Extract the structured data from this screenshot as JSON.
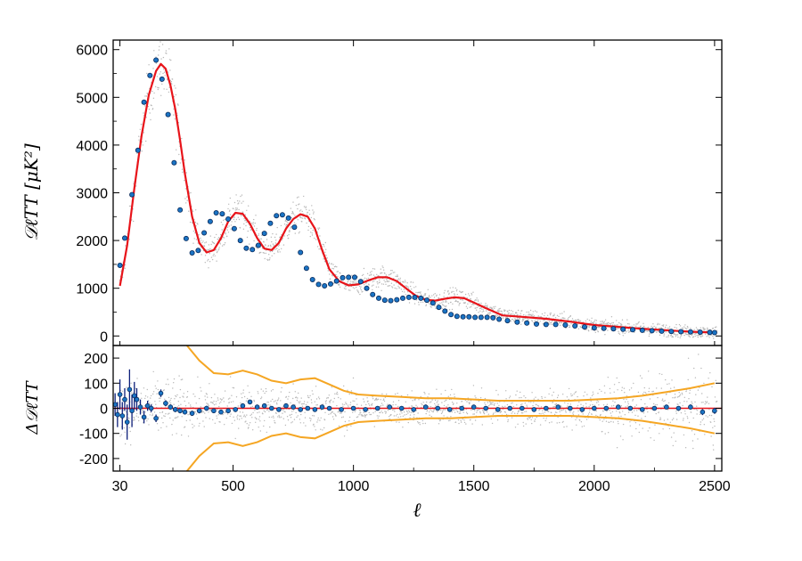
{
  "chart_data": [
    {
      "type": "scatter",
      "panel": "top",
      "title": "",
      "ylabel": "𝒟ℓTT [μK²]",
      "xlabel": "",
      "ylim": [
        -200,
        6200
      ],
      "yticks": [
        0,
        1000,
        2000,
        3000,
        4000,
        5000,
        6000
      ],
      "ytick_labels": [
        "0",
        "1000",
        "2000",
        "3000",
        "4000",
        "5000",
        "6000"
      ],
      "colors": {
        "model": "#e8141a",
        "points": "#1b74c4",
        "scatter": "#b8b8b8"
      },
      "series": [
        {
          "kind": "model-curve",
          "x": [
            30,
            60,
            90,
            120,
            150,
            180,
            200,
            220,
            240,
            260,
            280,
            300,
            330,
            360,
            390,
            420,
            450,
            480,
            510,
            540,
            570,
            600,
            630,
            660,
            690,
            720,
            750,
            780,
            810,
            840,
            870,
            900,
            940,
            980,
            1020,
            1060,
            1100,
            1140,
            1180,
            1220,
            1260,
            1300,
            1340,
            1380,
            1420,
            1460,
            1500,
            1560,
            1620,
            1700,
            1800,
            1900,
            2000,
            2100,
            2200,
            2300,
            2400,
            2500
          ],
          "y": [
            1050,
            1900,
            3100,
            4200,
            5050,
            5550,
            5700,
            5600,
            5250,
            4750,
            4100,
            3400,
            2500,
            1950,
            1750,
            1800,
            2050,
            2400,
            2580,
            2560,
            2350,
            2050,
            1830,
            1800,
            1950,
            2250,
            2450,
            2550,
            2500,
            2250,
            1800,
            1400,
            1150,
            1060,
            1080,
            1160,
            1230,
            1230,
            1150,
            990,
            840,
            760,
            740,
            780,
            810,
            790,
            700,
            560,
            430,
            400,
            360,
            300,
            230,
            190,
            150,
            120,
            90,
            70
          ]
        },
        {
          "kind": "binned-points",
          "x": [
            30,
            50,
            80,
            105,
            130,
            155,
            180,
            205,
            230,
            255,
            280,
            305,
            330,
            355,
            380,
            405,
            430,
            455,
            480,
            505,
            530,
            555,
            580,
            605,
            630,
            655,
            680,
            705,
            730,
            755,
            780,
            805,
            830,
            855,
            880,
            905,
            930,
            955,
            980,
            1005,
            1030,
            1055,
            1080,
            1105,
            1130,
            1155,
            1180,
            1205,
            1230,
            1255,
            1280,
            1305,
            1330,
            1355,
            1380,
            1405,
            1430,
            1455,
            1480,
            1505,
            1530,
            1555,
            1580,
            1605,
            1640,
            1680,
            1720,
            1760,
            1800,
            1840,
            1880,
            1920,
            1960,
            2000,
            2040,
            2080,
            2120,
            2160,
            2200,
            2240,
            2280,
            2320,
            2360,
            2400,
            2440,
            2480,
            2500
          ],
          "y": [
            1480,
            2050,
            2960,
            3890,
            4900,
            5460,
            5780,
            5380,
            4640,
            3630,
            2640,
            2040,
            1740,
            1790,
            2160,
            2400,
            2580,
            2560,
            2450,
            2250,
            2000,
            1840,
            1810,
            1900,
            2150,
            2360,
            2520,
            2540,
            2470,
            2280,
            1750,
            1420,
            1180,
            1080,
            1050,
            1090,
            1150,
            1220,
            1230,
            1230,
            1140,
            1000,
            870,
            790,
            750,
            740,
            760,
            790,
            810,
            810,
            790,
            750,
            690,
            600,
            520,
            450,
            410,
            400,
            400,
            390,
            390,
            390,
            380,
            350,
            320,
            290,
            270,
            250,
            240,
            240,
            230,
            210,
            190,
            170,
            160,
            150,
            140,
            130,
            120,
            110,
            100,
            95,
            90,
            85,
            80,
            75,
            70
          ]
        }
      ]
    },
    {
      "type": "scatter",
      "panel": "bottom",
      "title": "",
      "ylabel": "Δ𝒟ℓTT",
      "xlabel": "ℓ",
      "xlim": [
        2,
        2530
      ],
      "ylim": [
        -250,
        250
      ],
      "xticks": [
        30,
        500,
        1000,
        1500,
        2000,
        2500
      ],
      "xtick_labels": [
        "30",
        "500",
        "1000",
        "1500",
        "2000",
        "2500"
      ],
      "yticks": [
        -200,
        -100,
        0,
        100,
        200
      ],
      "ytick_labels": [
        "-200",
        "-100",
        "0",
        "100",
        "200"
      ],
      "colors": {
        "zero_line": "#e8141a",
        "envelope": "#f5a623",
        "points": "#1b74c4",
        "errorbars": "#0d1f7a",
        "scatter": "#b8b8b8"
      },
      "series": [
        {
          "kind": "binned-residuals",
          "x": [
            10,
            20,
            30,
            40,
            50,
            60,
            70,
            80,
            90,
            100,
            115,
            130,
            145,
            160,
            180,
            200,
            220,
            240,
            260,
            280,
            300,
            330,
            360,
            390,
            420,
            450,
            480,
            510,
            540,
            570,
            600,
            630,
            660,
            690,
            720,
            750,
            780,
            810,
            840,
            870,
            900,
            950,
            1000,
            1050,
            1100,
            1150,
            1200,
            1250,
            1300,
            1350,
            1400,
            1450,
            1500,
            1550,
            1600,
            1650,
            1700,
            1750,
            1800,
            1850,
            1900,
            1950,
            2000,
            2050,
            2100,
            2150,
            2200,
            2250,
            2300,
            2350,
            2400,
            2450,
            2500
          ],
          "y": [
            15,
            -25,
            55,
            -30,
            35,
            -55,
            75,
            -10,
            50,
            35,
            5,
            -35,
            10,
            0,
            -40,
            60,
            20,
            5,
            -5,
            -10,
            -15,
            -20,
            -10,
            0,
            -10,
            -15,
            -10,
            -5,
            10,
            25,
            5,
            10,
            0,
            -5,
            10,
            5,
            -5,
            0,
            -5,
            5,
            0,
            -5,
            0,
            -5,
            0,
            5,
            0,
            -5,
            5,
            0,
            -5,
            0,
            5,
            0,
            -5,
            0,
            0,
            -5,
            0,
            5,
            0,
            -5,
            0,
            0,
            5,
            0,
            -5,
            0,
            5,
            0,
            5,
            -15,
            -10
          ],
          "err": [
            45,
            50,
            60,
            55,
            45,
            70,
            80,
            65,
            55,
            45,
            30,
            25,
            20,
            15,
            15,
            15,
            12,
            10,
            10,
            10,
            10,
            10,
            10,
            10,
            8,
            8,
            8,
            8,
            8,
            8,
            8,
            8,
            8,
            8,
            8,
            8,
            8,
            8,
            8,
            8,
            8,
            8,
            8,
            8,
            8,
            8,
            8,
            8,
            8,
            8,
            8,
            8,
            8,
            8,
            8,
            8,
            8,
            8,
            8,
            8,
            8,
            8,
            8,
            8,
            8,
            8,
            8,
            8,
            8,
            8,
            10,
            12,
            12
          ]
        },
        {
          "kind": "envelope",
          "x": [
            300,
            360,
            420,
            480,
            540,
            600,
            660,
            720,
            780,
            840,
            900,
            960,
            1020,
            1100,
            1200,
            1300,
            1400,
            1500,
            1600,
            1700,
            1800,
            1900,
            2000,
            2100,
            2200,
            2300,
            2400,
            2500
          ],
          "y": [
            260,
            190,
            140,
            135,
            150,
            135,
            110,
            100,
            115,
            120,
            95,
            70,
            55,
            50,
            45,
            40,
            40,
            35,
            30,
            30,
            30,
            30,
            35,
            40,
            50,
            65,
            80,
            100
          ]
        }
      ]
    }
  ]
}
